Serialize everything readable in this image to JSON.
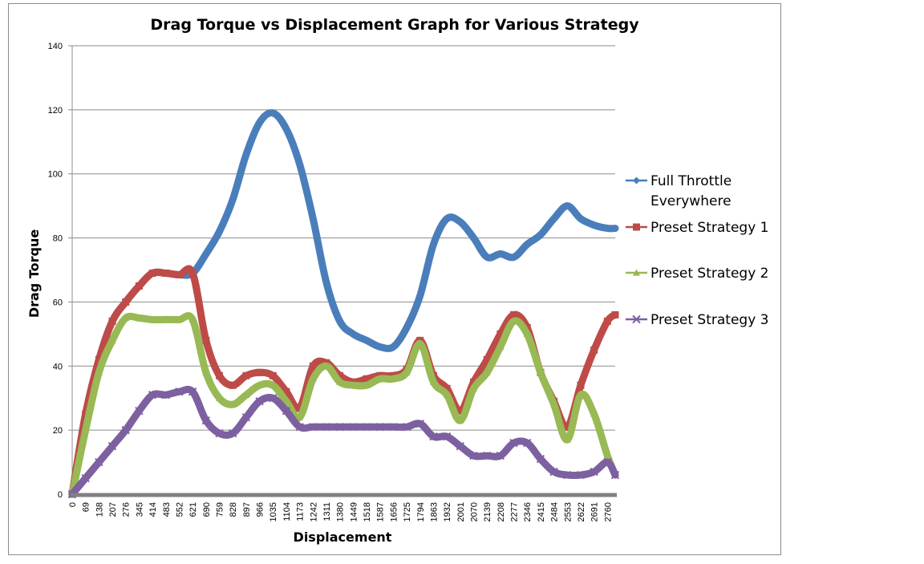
{
  "chart_data": {
    "type": "line",
    "title": "Drag Torque vs Displacement Graph for Various Strategy",
    "xlabel": "Displacement",
    "ylabel": "Drag Torque",
    "ylim": [
      0,
      140
    ],
    "yticks": [
      0,
      20,
      40,
      60,
      80,
      100,
      120,
      140
    ],
    "xlim": [
      0,
      2800
    ],
    "xticks": [
      0,
      69,
      138,
      207,
      276,
      345,
      414,
      483,
      552,
      621,
      690,
      759,
      828,
      897,
      966,
      1035,
      1104,
      1173,
      1242,
      1311,
      1380,
      1449,
      1518,
      1587,
      1656,
      1725,
      1794,
      1863,
      1932,
      2001,
      2070,
      2139,
      2208,
      2277,
      2346,
      2415,
      2484,
      2553,
      2622,
      2691,
      2760
    ],
    "grid": "horizontal",
    "legend_position": "right",
    "series": [
      {
        "name": "Full Throttle Everywhere",
        "color": "#4a7ebb",
        "marker": "diamond",
        "x": [
          0,
          69,
          138,
          207,
          276,
          345,
          414,
          483,
          552,
          621,
          690,
          759,
          828,
          897,
          966,
          1035,
          1104,
          1173,
          1242,
          1311,
          1380,
          1449,
          1518,
          1587,
          1656,
          1725,
          1794,
          1863,
          1932,
          2001,
          2070,
          2139,
          2208,
          2277,
          2346,
          2415,
          2484,
          2553,
          2622,
          2691,
          2760,
          2800
        ],
        "y": [
          0,
          25,
          42,
          54,
          60,
          65,
          69,
          69,
          68.5,
          69,
          75,
          82,
          92,
          106,
          116,
          119,
          114,
          103,
          86,
          66,
          54,
          50,
          48,
          46,
          46,
          52,
          62,
          78,
          86,
          85,
          80,
          74,
          75,
          74,
          78,
          81,
          86,
          90,
          86,
          84,
          83,
          83
        ]
      },
      {
        "name": "Preset Strategy 1",
        "color": "#be4b48",
        "marker": "square",
        "x": [
          0,
          69,
          138,
          207,
          276,
          345,
          414,
          483,
          552,
          621,
          690,
          759,
          828,
          897,
          966,
          1035,
          1104,
          1173,
          1242,
          1311,
          1380,
          1449,
          1518,
          1587,
          1656,
          1725,
          1794,
          1863,
          1932,
          2001,
          2070,
          2139,
          2208,
          2277,
          2346,
          2415,
          2484,
          2553,
          2622,
          2691,
          2760,
          2800
        ],
        "y": [
          0,
          25,
          42,
          54,
          60,
          65,
          69,
          69,
          68.5,
          69,
          48,
          37,
          34,
          37,
          38,
          37,
          32,
          27,
          40,
          41,
          37,
          35,
          36,
          37,
          37,
          39,
          48,
          37,
          33,
          26,
          35,
          42,
          50,
          56,
          52,
          38,
          29,
          21,
          34,
          45,
          54,
          56
        ]
      },
      {
        "name": "Preset Strategy 2",
        "color": "#98b954",
        "marker": "triangle",
        "x": [
          0,
          69,
          138,
          207,
          276,
          345,
          414,
          483,
          552,
          621,
          690,
          759,
          828,
          897,
          966,
          1035,
          1104,
          1173,
          1242,
          1311,
          1380,
          1449,
          1518,
          1587,
          1656,
          1725,
          1794,
          1863,
          1932,
          2001,
          2070,
          2139,
          2208,
          2277,
          2346,
          2415,
          2484,
          2553,
          2622,
          2691,
          2760,
          2800
        ],
        "y": [
          0,
          20,
          38,
          48,
          55,
          55,
          54.5,
          54.5,
          54.5,
          54.5,
          38,
          30,
          28,
          31,
          34,
          34,
          29,
          24,
          36,
          40,
          35,
          34,
          34,
          36,
          36,
          38,
          47,
          35,
          31,
          23,
          33,
          38,
          46,
          54,
          50,
          38,
          28,
          17,
          31,
          25,
          12,
          6
        ]
      },
      {
        "name": "Preset Strategy 3",
        "color": "#7d60a0",
        "marker": "x",
        "x": [
          0,
          69,
          138,
          207,
          276,
          345,
          414,
          483,
          552,
          621,
          690,
          759,
          828,
          897,
          966,
          1035,
          1104,
          1173,
          1242,
          1311,
          1380,
          1449,
          1518,
          1587,
          1656,
          1725,
          1794,
          1863,
          1932,
          2001,
          2070,
          2139,
          2208,
          2277,
          2346,
          2415,
          2484,
          2553,
          2622,
          2691,
          2760,
          2800
        ],
        "y": [
          0,
          5,
          10,
          15,
          20,
          26,
          31,
          31,
          32,
          32,
          23,
          19,
          19,
          24,
          29,
          30,
          26,
          21,
          21,
          21,
          21,
          21,
          21,
          21,
          21,
          21,
          22,
          18,
          18,
          15,
          12,
          12,
          12,
          16,
          16,
          11,
          7,
          6,
          6,
          7,
          10,
          6
        ]
      }
    ]
  }
}
